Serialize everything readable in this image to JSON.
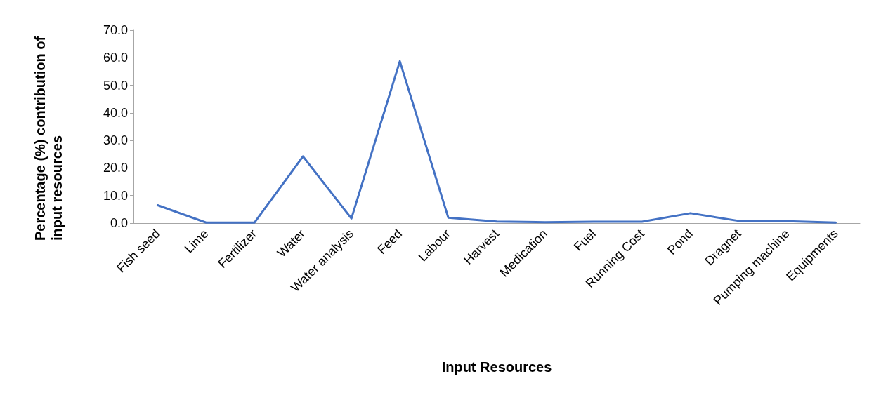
{
  "chart_data": {
    "type": "line",
    "xlabel": "Input Resources",
    "ylabel": "Percentage (%) contribution of input resources",
    "categories": [
      "Fish seed",
      "Lime",
      "Fertilizer",
      "Water",
      "Water analysis",
      "Feed",
      "Labour",
      "Harvest",
      "Medication",
      "Fuel",
      "Running Cost",
      "Pond",
      "Dragnet",
      "Pumping machine",
      "Equipments"
    ],
    "series": [
      {
        "color": "#4472c4",
        "values": [
          6.5,
          0.2,
          0.2,
          24.2,
          1.7,
          58.7,
          2.0,
          0.6,
          0.3,
          0.5,
          0.5,
          3.6,
          0.8,
          0.7,
          0.2
        ]
      }
    ],
    "ylim": [
      0,
      70
    ],
    "yticks": [
      {
        "value": 0,
        "label": "0.0"
      },
      {
        "value": 10,
        "label": "10.0"
      },
      {
        "value": 20,
        "label": "20.0"
      },
      {
        "value": 30,
        "label": "30.0"
      },
      {
        "value": 40,
        "label": "40.0"
      },
      {
        "value": 50,
        "label": "50.0"
      },
      {
        "value": 60,
        "label": "60.0"
      },
      {
        "value": 70,
        "label": "70.0"
      }
    ],
    "grid": false,
    "marker": "none",
    "line_style": "solid"
  }
}
